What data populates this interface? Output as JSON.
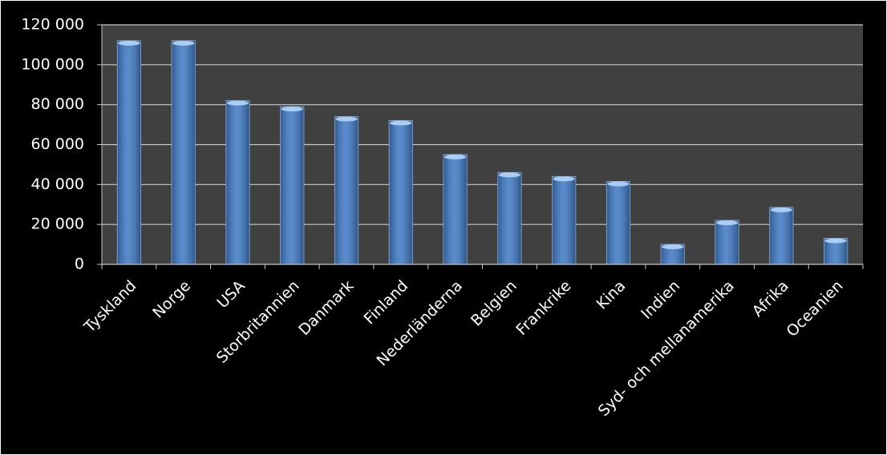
{
  "chart_data": {
    "type": "bar",
    "categories": [
      "Tyskland",
      "Norge",
      "USA",
      "Storbritannien",
      "Danmark",
      "Finland",
      "Nederländerna",
      "Belgien",
      "Frankrike",
      "Kina",
      "Indien",
      "Syd- och mellanamerika",
      "Afrika",
      "Oceanien"
    ],
    "values": [
      112000,
      112000,
      82000,
      79000,
      74000,
      72000,
      55000,
      46000,
      44000,
      41500,
      10000,
      22000,
      28500,
      13000
    ],
    "color": "#3d78c4",
    "ylim": [
      0,
      120000
    ],
    "yticks": [
      {
        "value": 0,
        "label": "0"
      },
      {
        "value": 20000,
        "label": "20 000"
      },
      {
        "value": 40000,
        "label": "40 000"
      },
      {
        "value": 60000,
        "label": "60 000"
      },
      {
        "value": 80000,
        "label": "80 000"
      },
      {
        "value": 100000,
        "label": "100 000"
      },
      {
        "value": 120000,
        "label": "120 000"
      }
    ],
    "grid": true
  }
}
